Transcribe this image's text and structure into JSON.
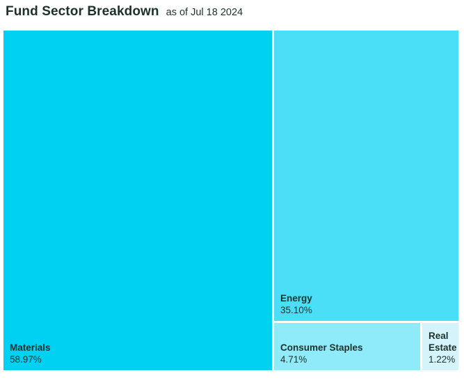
{
  "header": {
    "title": "Fund Sector Breakdown",
    "as_of": "as of Jul 18 2024"
  },
  "colors": {
    "text": "#1d312c",
    "background": "#ffffff"
  },
  "chart_data": {
    "type": "treemap",
    "title": "Fund Sector Breakdown",
    "as_of_date": "Jul 18 2024",
    "unit": "percent",
    "legend_position": "none",
    "items": [
      {
        "label": "Materials",
        "value": 58.97,
        "value_label": "58.97%",
        "color": "#00d0f2"
      },
      {
        "label": "Energy",
        "value": 35.1,
        "value_label": "35.10%",
        "color": "#4adff7"
      },
      {
        "label": "Consumer Staples",
        "value": 4.71,
        "value_label": "4.71%",
        "color": "#8febfa"
      },
      {
        "label": "Real Estate",
        "value": 1.22,
        "value_label": "1.22%",
        "color": "#d5f3fb"
      }
    ]
  }
}
